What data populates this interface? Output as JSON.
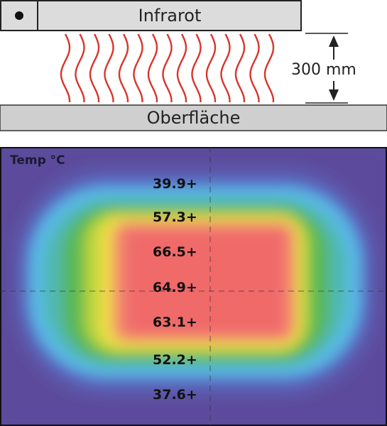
{
  "header": {
    "heater_label": "Infrarot",
    "surface_label": "Oberfläche",
    "distance_label": "300 mm"
  },
  "thermal_image": {
    "title": "Temp °C",
    "readings": [
      "39.9+",
      "57.3+",
      "66.5+",
      "64.9+",
      "63.1+",
      "52.2+",
      "37.6+"
    ]
  },
  "colors": {
    "heater_fill": "#dcdcdc",
    "surface_fill": "#cfcfcf",
    "wave_stroke": "#d9342b",
    "outline": "#222222"
  }
}
